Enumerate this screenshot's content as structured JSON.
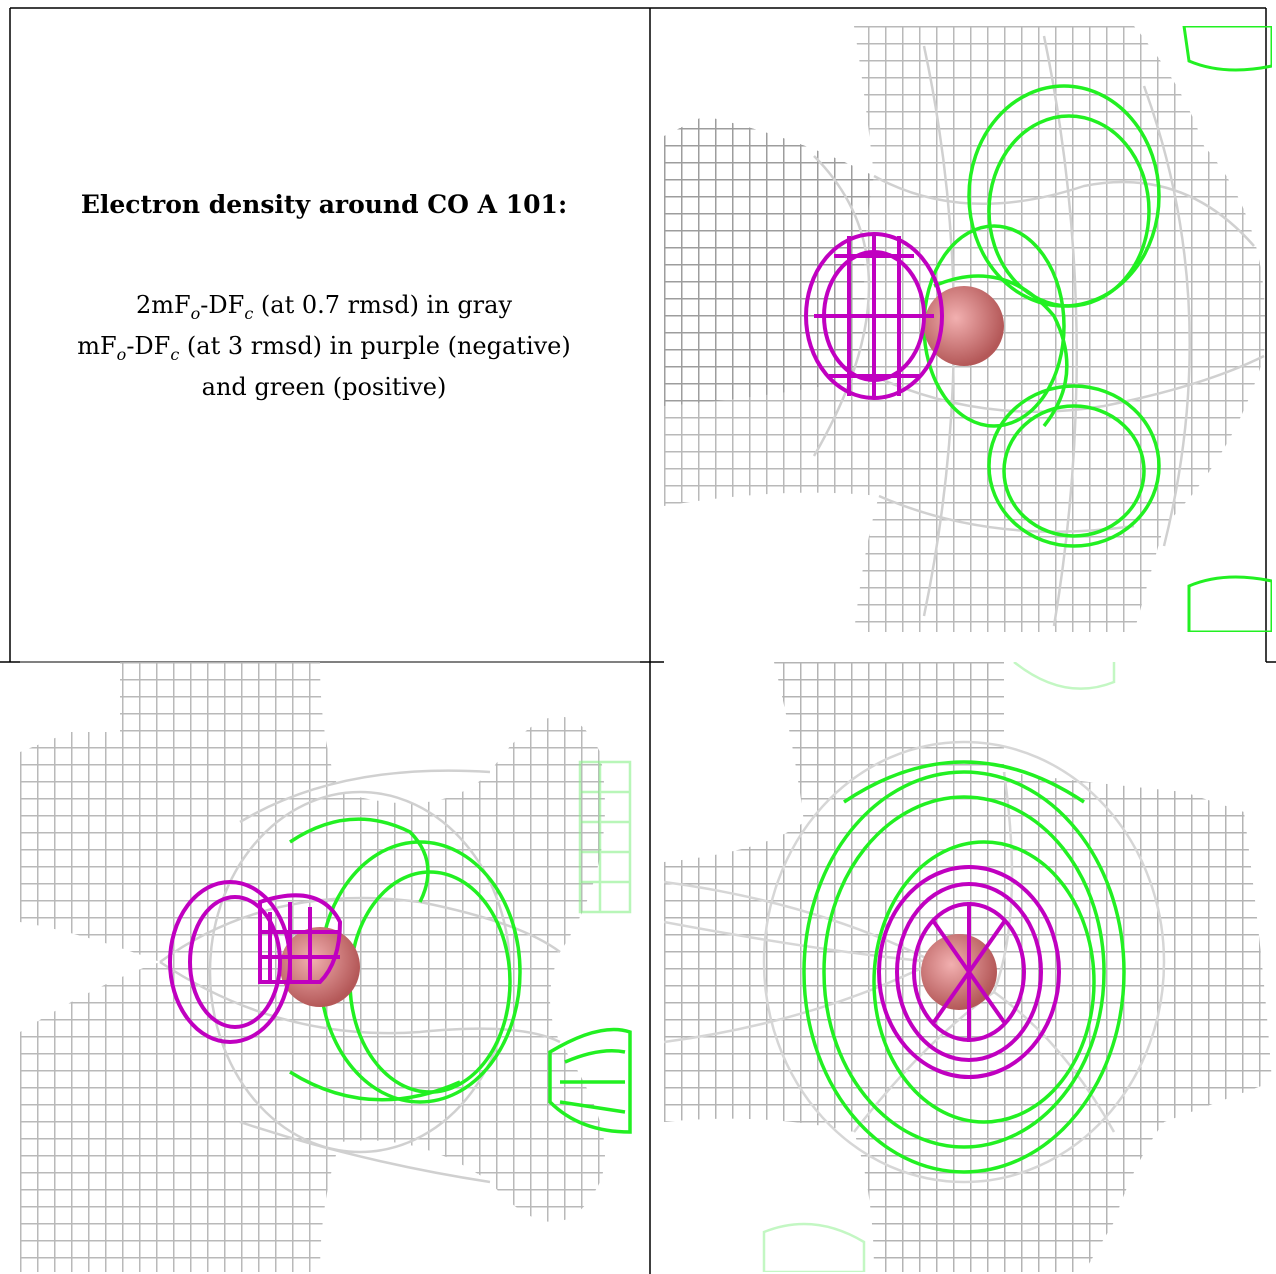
{
  "caption": {
    "title": "Electron density around CO A 101:",
    "line1_pre": "2mF",
    "line1_sub1": "o",
    "line1_mid": "-DF",
    "line1_sub2": "c",
    "line1_post": " (at 0.7 rmsd) in gray",
    "line2_pre": "mF",
    "line2_sub1": "o",
    "line2_mid": "-DF",
    "line2_sub2": "c",
    "line2_post": " (at 3 rmsd) in purple (negative)",
    "line3": "and green (positive)"
  },
  "colors": {
    "gray_mesh": "#b9b9b9",
    "gray_mesh_dark": "#6f6f6f",
    "purple_mesh": "#c000c0",
    "green_mesh": "#22f022",
    "atom": "#c86a6a"
  },
  "panels": [
    {
      "name": "view-1",
      "icon": "electron-density-mesh"
    },
    {
      "name": "view-2",
      "icon": "electron-density-mesh"
    },
    {
      "name": "view-3",
      "icon": "electron-density-mesh"
    }
  ]
}
